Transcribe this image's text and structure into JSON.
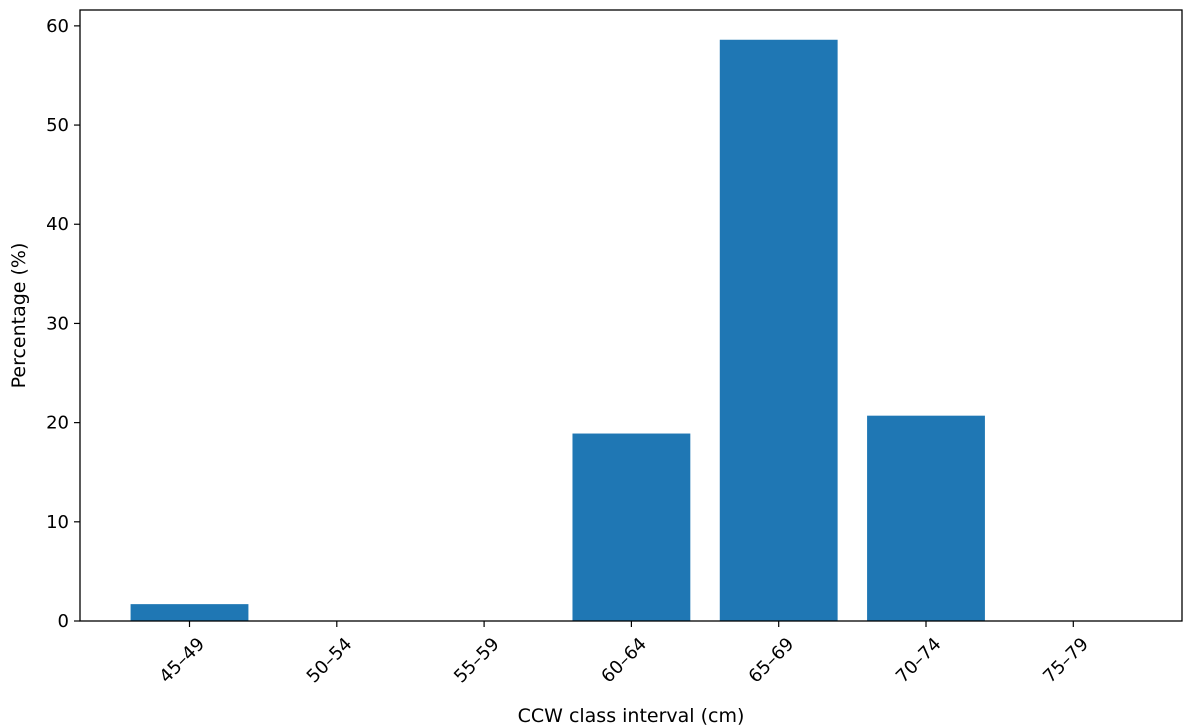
{
  "chart_data": {
    "type": "bar",
    "title": "",
    "xlabel": "CCW class interval (cm)",
    "ylabel": "Percentage (%)",
    "categories": [
      "45–49",
      "50–54",
      "55–59",
      "60–64",
      "65–69",
      "70–74",
      "75–79"
    ],
    "values": [
      1.7,
      0,
      0,
      18.9,
      58.6,
      20.7,
      0
    ],
    "ylim": [
      0,
      61.6
    ],
    "yticks": [
      0,
      10,
      20,
      30,
      40,
      50,
      60
    ],
    "grid": false,
    "legend": "none",
    "bar_color": "#1f77b4"
  }
}
